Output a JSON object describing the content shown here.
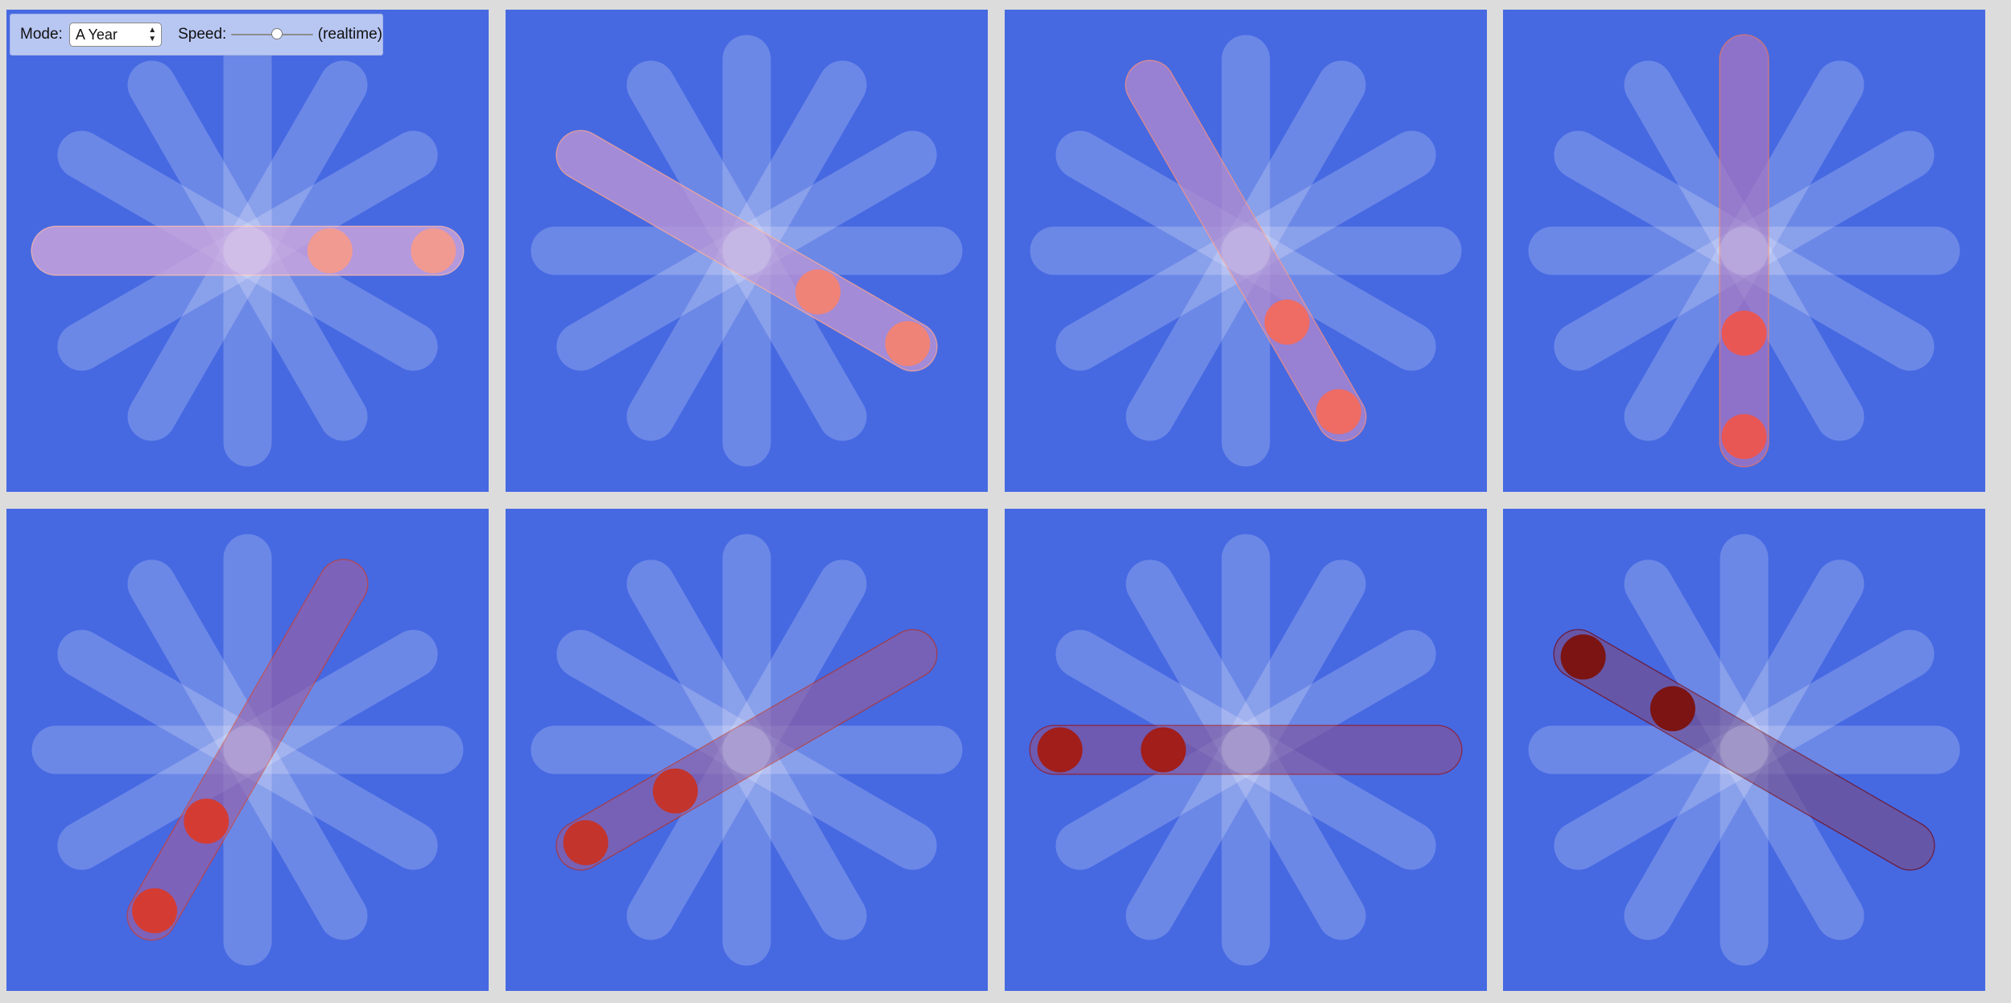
{
  "controls": {
    "mode_label": "Mode:",
    "mode_value": "A Year",
    "mode_arrows": "▲▼",
    "speed_label": "Speed:",
    "speed_value": 0.55,
    "speed_note": "(realtime)"
  },
  "colors": {
    "page_background": "#dcdcdc",
    "panel_background": "#4669e2",
    "spoke": "#ffffff",
    "controls_background": "#b8c6f2"
  },
  "spokes_per_star": 6,
  "panels": [
    {
      "name": "panel-1",
      "angle_deg": 0,
      "ball_color": "#f19a92",
      "outline": "#f4b2ae",
      "bar_tint": "#c39ad9",
      "ball_offsets": [
        0.43,
        0.97
      ]
    },
    {
      "name": "panel-2",
      "angle_deg": 30,
      "ball_color": "#ef8378",
      "outline": "#ee9d97",
      "bar_tint": "#ad88d2",
      "ball_offsets": [
        0.43,
        0.97
      ]
    },
    {
      "name": "panel-3",
      "angle_deg": 60,
      "ball_color": "#ee6c64",
      "outline": "#e88a88",
      "bar_tint": "#9f7acb",
      "ball_offsets": [
        0.43,
        0.97
      ]
    },
    {
      "name": "panel-4",
      "angle_deg": 90,
      "ball_color": "#e85754",
      "outline": "#d8706e",
      "bar_tint": "#9268c0",
      "ball_offsets": [
        0.43,
        0.97
      ]
    },
    {
      "name": "panel-5",
      "angle_deg": 120,
      "ball_color": "#d43c33",
      "outline": "#b8404a",
      "bar_tint": "#7c55ad",
      "ball_offsets": [
        0.43,
        0.97
      ]
    },
    {
      "name": "panel-6",
      "angle_deg": 150,
      "ball_color": "#c3342c",
      "outline": "#a53644",
      "bar_tint": "#7452a8",
      "ball_offsets": [
        0.43,
        0.97
      ]
    },
    {
      "name": "panel-7",
      "angle_deg": 180,
      "ball_color": "#a11e1b",
      "outline": "#8d1e35",
      "bar_tint": "#694aa0",
      "ball_offsets": [
        0.43,
        0.97
      ]
    },
    {
      "name": "panel-8",
      "angle_deg": 210,
      "ball_color": "#7b1412",
      "outline": "#6c1531",
      "bar_tint": "#5f4595",
      "ball_offsets": [
        0.43,
        0.97
      ]
    }
  ]
}
